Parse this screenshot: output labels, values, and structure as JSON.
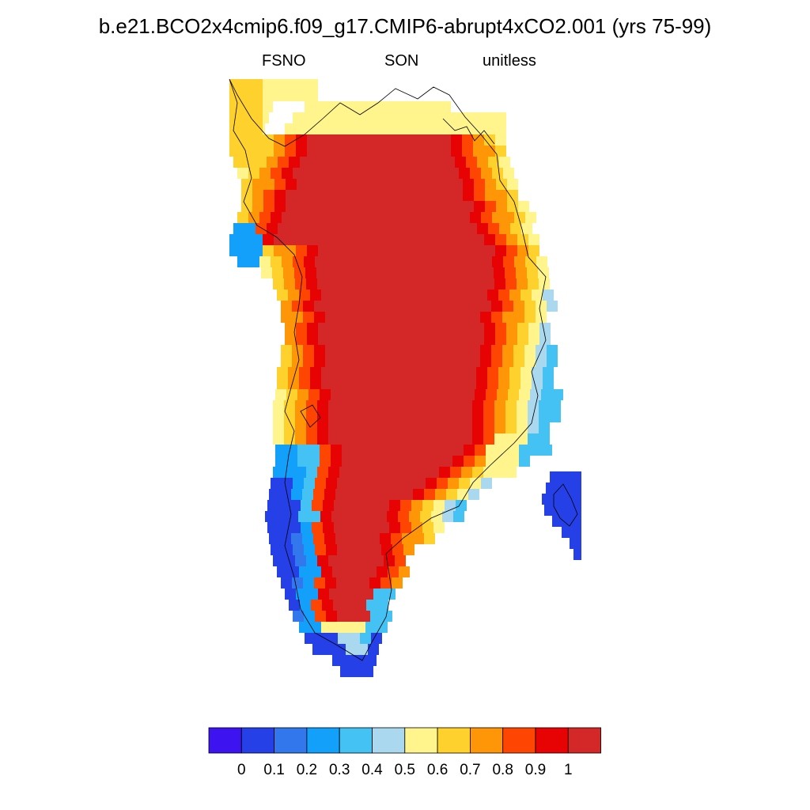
{
  "title": "b.e21.BCO2x4cmip6.f09_g17.CMIP6-abrupt4xCO2.001 (yrs 75-99)",
  "subtitle_left": "FSNO",
  "subtitle_center": "SON",
  "subtitle_right": "unitless",
  "colorbar": {
    "colors": [
      "#3d14f0",
      "#2540e6",
      "#3278ec",
      "#12a0fa",
      "#44c2f4",
      "#aad8ee",
      "#fff58c",
      "#ffd12c",
      "#fe9608",
      "#fe4502",
      "#e70303",
      "#d42727"
    ],
    "labels": [
      "0",
      "0.1",
      "0.2",
      "0.3",
      "0.4",
      "0.5",
      "0.6",
      "0.7",
      "0.8",
      "0.9",
      "1"
    ]
  },
  "map": {
    "region": "Greenland",
    "classes": [
      "#3d14f0",
      "#2540e6",
      "#3278ec",
      "#12a0fa",
      "#44c2f4",
      "#aad8ee",
      "#fff58c",
      "#ffd12c",
      "#fe9608",
      "#fe4502",
      "#e70303",
      "#d42727"
    ]
  }
}
